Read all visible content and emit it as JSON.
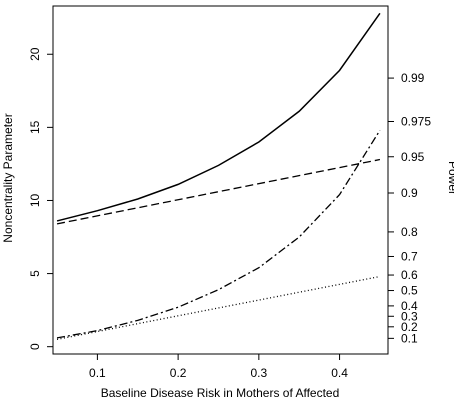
{
  "chart_data": {
    "type": "line",
    "xlabel": "Baseline Disease Risk in Mothers of Affected",
    "ylabel": "Noncentrality Parameter",
    "y2label": "Power",
    "xlim": [
      0.045,
      0.46
    ],
    "ylim": [
      -0.5,
      23.3
    ],
    "x_ticks": [
      "0.1",
      "0.2",
      "0.3",
      "0.4"
    ],
    "y_ticks": [
      "0",
      "5",
      "10",
      "15",
      "20"
    ],
    "y2_ticks": [
      {
        "label": "0.1",
        "ncp": 0.57
      },
      {
        "label": "0.2",
        "ncp": 1.36
      },
      {
        "label": "0.3",
        "ncp": 2.08
      },
      {
        "label": "0.4",
        "ncp": 2.79
      },
      {
        "label": "0.5",
        "ncp": 3.84
      },
      {
        "label": "0.6",
        "ncp": 4.9
      },
      {
        "label": "0.7",
        "ncp": 6.17
      },
      {
        "label": "0.8",
        "ncp": 7.85
      },
      {
        "label": "0.9",
        "ncp": 10.51
      },
      {
        "label": "0.95",
        "ncp": 12.99
      },
      {
        "label": "0.975",
        "ncp": 15.4
      },
      {
        "label": "0.99",
        "ncp": 18.37
      }
    ],
    "series": [
      {
        "style": "solid",
        "x": [
          0.05,
          0.1,
          0.15,
          0.2,
          0.25,
          0.3,
          0.35,
          0.4,
          0.45
        ],
        "values": [
          8.6,
          9.3,
          10.1,
          11.1,
          12.4,
          14.0,
          16.1,
          18.9,
          22.8
        ]
      },
      {
        "style": "dashed",
        "x": [
          0.05,
          0.45
        ],
        "values": [
          8.4,
          12.8
        ]
      },
      {
        "style": "dashdot",
        "x": [
          0.05,
          0.1,
          0.15,
          0.2,
          0.25,
          0.3,
          0.35,
          0.4,
          0.45
        ],
        "values": [
          0.6,
          1.1,
          1.8,
          2.7,
          3.9,
          5.4,
          7.5,
          10.4,
          14.8
        ]
      },
      {
        "style": "dotted",
        "x": [
          0.05,
          0.45
        ],
        "values": [
          0.5,
          4.8
        ]
      }
    ]
  }
}
